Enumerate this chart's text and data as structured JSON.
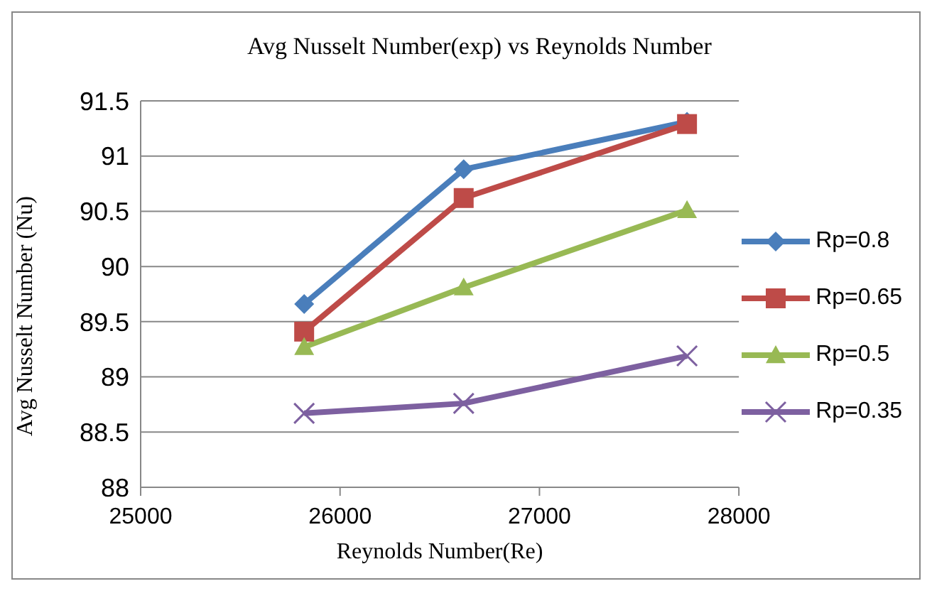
{
  "chart_data": {
    "type": "line",
    "title": "Avg Nusselt Number(exp) vs Reynolds Number",
    "xlabel": "Reynolds Number(Re)",
    "ylabel": "Avg Nusselt Number (Nu)",
    "x": [
      25820,
      26620,
      27740
    ],
    "series": [
      {
        "name": "Rp=0.8",
        "color": "#4a7ebb",
        "marker": "diamond",
        "values": [
          89.66,
          90.88,
          91.31
        ]
      },
      {
        "name": "Rp=0.65",
        "color": "#be4b48",
        "marker": "square",
        "values": [
          89.41,
          90.62,
          91.29
        ]
      },
      {
        "name": "Rp=0.5",
        "color": "#98b954",
        "marker": "triangle",
        "values": [
          89.27,
          89.81,
          90.51
        ]
      },
      {
        "name": "Rp=0.35",
        "color": "#7d60a0",
        "marker": "cross",
        "values": [
          88.67,
          88.76,
          89.19
        ]
      }
    ],
    "xlim": [
      25000,
      28000
    ],
    "xticks": [
      25000,
      26000,
      27000,
      28000
    ],
    "ylim": [
      88,
      91.5
    ],
    "yticks": [
      88,
      88.5,
      89,
      89.5,
      90,
      90.5,
      91,
      91.5
    ],
    "grid": "y",
    "legend": "right"
  }
}
